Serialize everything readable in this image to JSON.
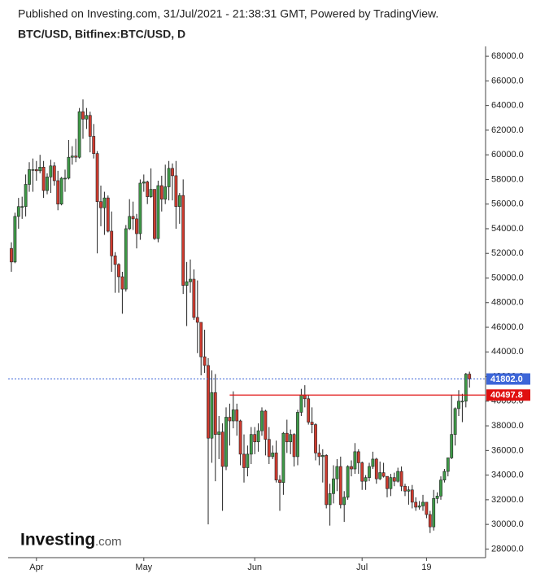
{
  "chart_data": {
    "type": "candlestick",
    "subtitle": "Published on Investing.com, 31/Jul/2021 - 21:38:31 GMT, Powered by TradingView.",
    "title": "BTC/USD, Bitfinex:BTC/USD, D",
    "categories": [
      null,
      null,
      null,
      null,
      null,
      null,
      null,
      "Apr",
      null,
      null,
      null,
      null,
      null,
      null,
      null,
      null,
      null,
      null,
      null,
      null,
      null,
      null,
      null,
      null,
      null,
      null,
      null,
      null,
      null,
      null,
      null,
      null,
      null,
      null,
      null,
      null,
      null,
      "May",
      null,
      null,
      null,
      null,
      null,
      null,
      null,
      null,
      null,
      null,
      null,
      null,
      null,
      null,
      null,
      null,
      null,
      null,
      null,
      null,
      null,
      null,
      null,
      null,
      null,
      null,
      null,
      null,
      null,
      null,
      "Jun",
      null,
      null,
      null,
      null,
      null,
      null,
      null,
      null,
      null,
      null,
      null,
      null,
      null,
      null,
      null,
      null,
      null,
      null,
      null,
      null,
      null,
      null,
      null,
      null,
      null,
      null,
      null,
      null,
      null,
      "Jul",
      null,
      null,
      null,
      null,
      null,
      null,
      null,
      null,
      null,
      null,
      null,
      null,
      null,
      null,
      null,
      null,
      null,
      "19",
      null,
      null,
      null,
      null,
      null,
      null,
      null,
      null,
      null,
      null,
      null,
      null
    ],
    "open": [
      52400,
      51300,
      55000,
      55800,
      55800,
      57600,
      58800,
      58800,
      58700,
      59000,
      57100,
      58200,
      59100,
      57900,
      56000,
      58100,
      58100,
      59800,
      59900,
      59800,
      63500,
      62900,
      63200,
      61500,
      60100,
      56200,
      55700,
      56500,
      53800,
      51800,
      51100,
      50100,
      49100,
      54000,
      55000,
      54800,
      53600,
      57700,
      57800,
      56600,
      57200,
      53200,
      57500,
      56400,
      57400,
      58900,
      58300,
      55800,
      56700,
      49400,
      49700,
      49900,
      46800,
      46400,
      43600,
      42900,
      37000,
      40700,
      37300,
      37500,
      34700,
      38700,
      38400,
      39300,
      38400,
      35700,
      34600,
      35700,
      37300,
      36700,
      37600,
      39200,
      36900,
      35500,
      35800,
      33600,
      33400,
      37400,
      36700,
      37300,
      35500,
      39100,
      40500,
      40200,
      38300,
      38100,
      35800,
      35500,
      35600,
      31600,
      32500,
      33700,
      34700,
      31600,
      32200,
      34700,
      34500,
      35900,
      35000,
      33500,
      33800,
      34700,
      35300,
      33700,
      34200,
      33900,
      32900,
      33800,
      33500,
      34300,
      33100,
      32700,
      32800,
      31800,
      31400,
      31500,
      31800,
      30800,
      29800,
      32100,
      32300,
      33600,
      34300,
      35400,
      37300,
      39400,
      40000,
      40000,
      42200
    ],
    "high": [
      52900,
      55300,
      56500,
      56600,
      58400,
      59400,
      59700,
      59500,
      60000,
      59500,
      58500,
      59600,
      59400,
      58700,
      58200,
      58800,
      61200,
      60700,
      61300,
      63800,
      64500,
      63800,
      63500,
      62500,
      60300,
      57500,
      57000,
      56700,
      55400,
      52100,
      51200,
      50500,
      54300,
      56400,
      56200,
      55200,
      58000,
      58400,
      57900,
      58900,
      57200,
      57900,
      58300,
      59200,
      59500,
      59300,
      59500,
      56900,
      58000,
      51300,
      51500,
      50700,
      49800,
      46000,
      45800,
      43500,
      42500,
      42200,
      38800,
      38200,
      39500,
      39800,
      40800,
      39800,
      38500,
      37300,
      36400,
      37900,
      37900,
      38200,
      39500,
      39300,
      37900,
      36400,
      36800,
      34000,
      37500,
      38500,
      37700,
      37400,
      39300,
      41000,
      41300,
      40500,
      39500,
      38200,
      36500,
      36100,
      35700,
      33300,
      34800,
      35300,
      35500,
      32700,
      34800,
      35200,
      36600,
      36100,
      35100,
      34000,
      35000,
      35900,
      35400,
      35100,
      35000,
      33900,
      34100,
      34200,
      34600,
      34700,
      33300,
      33100,
      33200,
      32200,
      31900,
      32400,
      31800,
      31100,
      32800,
      32600,
      33900,
      34500,
      35400,
      40500,
      39500,
      40900,
      40600,
      42300,
      42400
    ],
    "low": [
      50500,
      51200,
      54000,
      54800,
      55000,
      57000,
      57000,
      57900,
      58500,
      56500,
      56800,
      56900,
      57500,
      55500,
      55900,
      57000,
      58000,
      59200,
      59400,
      59700,
      61300,
      62100,
      60200,
      59700,
      52000,
      54200,
      53500,
      53700,
      50500,
      48800,
      48800,
      47100,
      48900,
      53900,
      53900,
      52400,
      53100,
      57000,
      56000,
      56500,
      53100,
      52900,
      55400,
      56000,
      56300,
      56300,
      54000,
      54400,
      48700,
      46100,
      48800,
      46600,
      43900,
      42100,
      42300,
      30000,
      35000,
      33500,
      35300,
      31100,
      34400,
      36400,
      37800,
      37200,
      34800,
      33400,
      33900,
      34900,
      35700,
      35900,
      37200,
      35600,
      34900,
      35300,
      33400,
      31100,
      32400,
      35800,
      35700,
      34700,
      34800,
      38800,
      39500,
      38100,
      37400,
      35200,
      34800,
      33400,
      31300,
      29900,
      31700,
      32700,
      31300,
      30200,
      32000,
      33900,
      34100,
      34100,
      32800,
      32800,
      33500,
      34500,
      33300,
      33600,
      33800,
      32200,
      32300,
      33100,
      33400,
      32700,
      32300,
      31600,
      31300,
      31100,
      31200,
      31100,
      30500,
      29300,
      29500,
      31700,
      32000,
      33400,
      33900,
      35300,
      36400,
      38800,
      38300,
      39500,
      41100
    ],
    "close": [
      51300,
      55000,
      55800,
      55800,
      57600,
      58800,
      58800,
      58700,
      59000,
      57100,
      58200,
      59100,
      57900,
      56000,
      58100,
      58100,
      59800,
      59900,
      59800,
      63500,
      62900,
      63200,
      61500,
      60100,
      56200,
      55700,
      56500,
      53800,
      51800,
      51100,
      50100,
      49100,
      54000,
      55000,
      54800,
      53600,
      57700,
      57800,
      56600,
      57200,
      53200,
      57500,
      56400,
      57400,
      58900,
      58300,
      55800,
      56700,
      49400,
      49700,
      49900,
      46800,
      46400,
      43600,
      42900,
      37000,
      40700,
      37300,
      37500,
      34700,
      38700,
      38400,
      39300,
      38400,
      35700,
      34600,
      35700,
      37300,
      36700,
      37600,
      39200,
      36900,
      35500,
      35800,
      33600,
      33400,
      37400,
      36700,
      37300,
      35500,
      39100,
      40500,
      40200,
      38300,
      38100,
      35800,
      35500,
      35600,
      31600,
      32500,
      33700,
      34700,
      31600,
      32200,
      34700,
      34500,
      35900,
      35000,
      33500,
      33800,
      34700,
      35300,
      33700,
      34200,
      33900,
      32900,
      33800,
      33500,
      34300,
      33100,
      32700,
      32800,
      31800,
      31400,
      31500,
      31800,
      30800,
      29800,
      32100,
      32300,
      33600,
      34300,
      35400,
      37300,
      39400,
      40000,
      40000,
      42200,
      41802
    ],
    "up_color": "#3f9a48",
    "down_color": "#cf3b2f",
    "ylim": [
      27300,
      68800
    ],
    "yticks": [
      {
        "value": 28000,
        "label": "28000.0"
      },
      {
        "value": 30000,
        "label": "30000.0"
      },
      {
        "value": 32000,
        "label": "32000.0"
      },
      {
        "value": 34000,
        "label": "34000.0"
      },
      {
        "value": 36000,
        "label": "36000.0"
      },
      {
        "value": 38000,
        "label": "38000.0"
      },
      {
        "value": 40000,
        "label": "40000.0"
      },
      {
        "value": 42000,
        "label": "42000.0"
      },
      {
        "value": 44000,
        "label": "44000.0"
      },
      {
        "value": 46000,
        "label": "46000.0"
      },
      {
        "value": 48000,
        "label": "48000.0"
      },
      {
        "value": 50000,
        "label": "50000.0"
      },
      {
        "value": 52000,
        "label": "52000.0"
      },
      {
        "value": 54000,
        "label": "54000.0"
      },
      {
        "value": 56000,
        "label": "56000.0"
      },
      {
        "value": 58000,
        "label": "58000.0"
      },
      {
        "value": 60000,
        "label": "60000.0"
      },
      {
        "value": 62000,
        "label": "62000.0"
      },
      {
        "value": 64000,
        "label": "64000.0"
      },
      {
        "value": 66000,
        "label": "66000.0"
      },
      {
        "value": 68000,
        "label": "68000.0"
      }
    ],
    "last_price": {
      "value": 41802,
      "label": "41802.0",
      "color": "#3d66d8"
    },
    "level": {
      "value": 40497.8,
      "color": "#e01010"
    }
  },
  "logo": {
    "brand": "Investing",
    "suffix": ".com"
  }
}
